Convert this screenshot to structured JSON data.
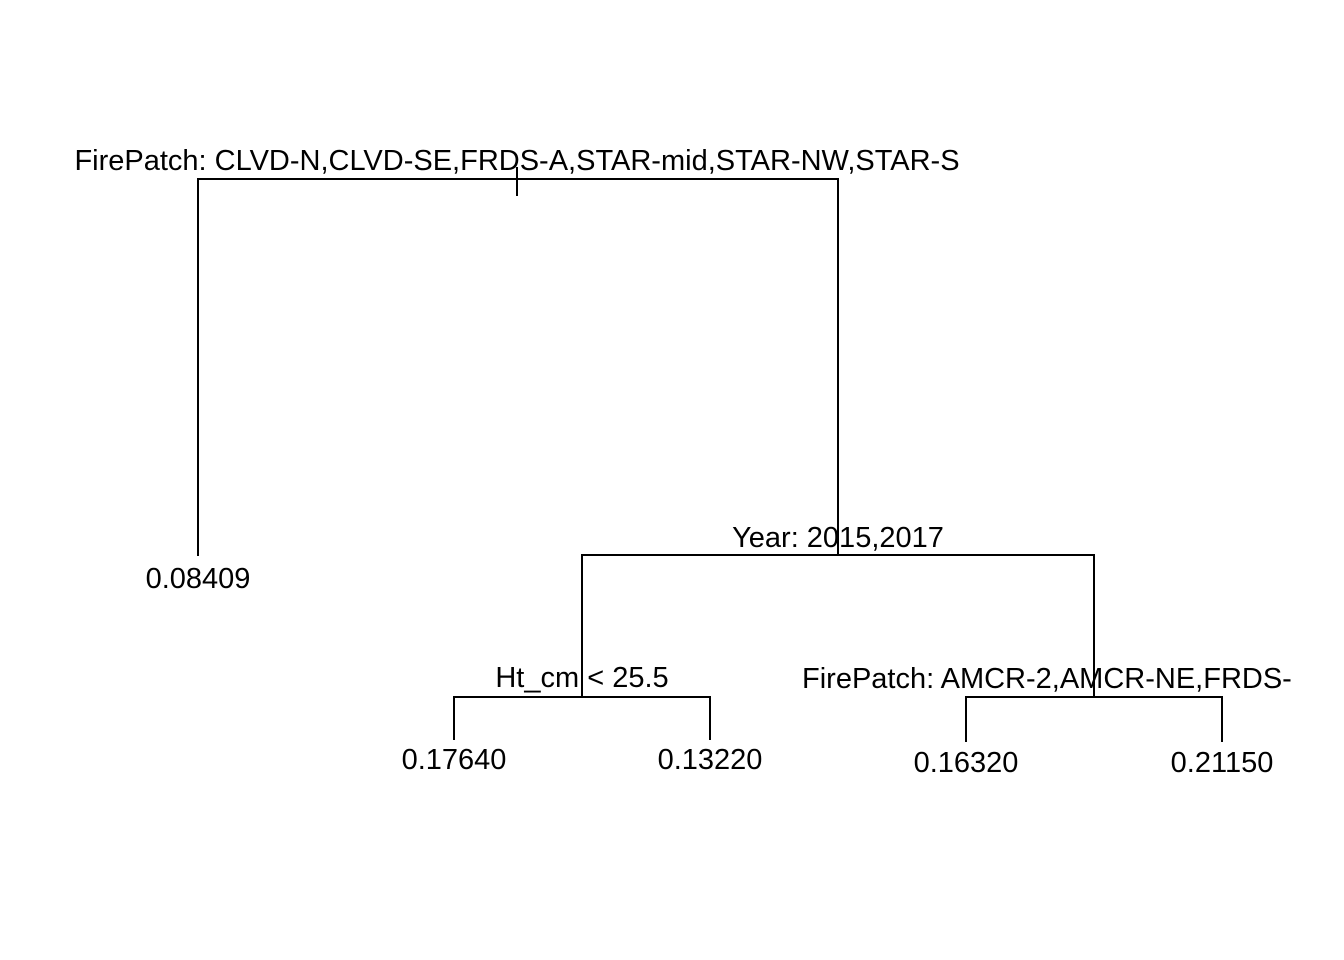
{
  "tree": {
    "type": "regression-tree",
    "root": {
      "split": "FirePatch: CLVD-N,CLVD-SE,FRDS-A,STAR-mid,STAR-NW,STAR-S",
      "left": {
        "leaf": "0.08409"
      },
      "right": {
        "split": "Year: 2015,2017",
        "left": {
          "split": "Ht_cm < 25.5",
          "left": {
            "leaf": "0.17640"
          },
          "right": {
            "leaf": "0.13220"
          }
        },
        "right": {
          "split": "FirePatch: AMCR-2,AMCR-NE,FRDS-",
          "left": {
            "leaf": "0.16320"
          },
          "right": {
            "leaf": "0.21150"
          }
        }
      }
    }
  }
}
